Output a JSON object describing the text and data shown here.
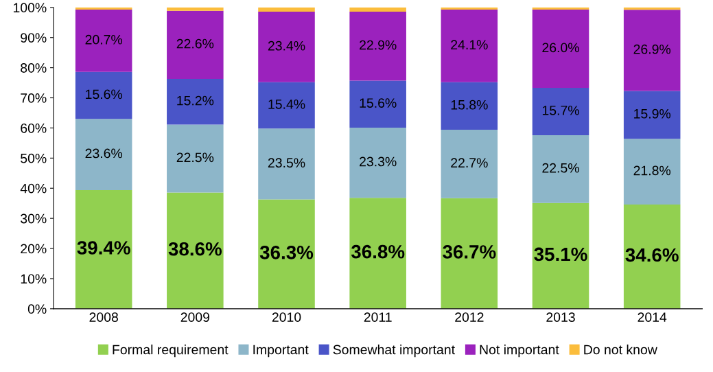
{
  "chart_data": {
    "type": "bar",
    "stacked": true,
    "categories": [
      "2008",
      "2009",
      "2010",
      "2011",
      "2012",
      "2013",
      "2014"
    ],
    "ylim": [
      0,
      100
    ],
    "yticks": [
      {
        "value": 0,
        "label": "0%"
      },
      {
        "value": 10,
        "label": "10%"
      },
      {
        "value": 20,
        "label": "20%"
      },
      {
        "value": 30,
        "label": "30%"
      },
      {
        "value": 40,
        "label": "40%"
      },
      {
        "value": 50,
        "label": "50%"
      },
      {
        "value": 60,
        "label": "60%"
      },
      {
        "value": 70,
        "label": "70%"
      },
      {
        "value": 80,
        "label": "80%"
      },
      {
        "value": 90,
        "label": "90%"
      },
      {
        "value": 100,
        "label": "100%"
      }
    ],
    "grid": false,
    "legend": "bottom",
    "series": [
      {
        "name": "Formal requirement",
        "color": "#92d050",
        "values": [
          39.4,
          38.6,
          36.3,
          36.8,
          36.7,
          35.1,
          34.6
        ],
        "value_labels": [
          "39.4%",
          "38.6%",
          "36.3%",
          "36.8%",
          "36.7%",
          "35.1%",
          "34.6%"
        ]
      },
      {
        "name": "Important",
        "color": "#8db6c9",
        "values": [
          23.6,
          22.5,
          23.5,
          23.3,
          22.7,
          22.5,
          21.8
        ],
        "value_labels": [
          "23.6%",
          "22.5%",
          "23.5%",
          "23.3%",
          "22.7%",
          "22.5%",
          "21.8%"
        ]
      },
      {
        "name": "Somewhat important",
        "color": "#4a55c8",
        "values": [
          15.6,
          15.2,
          15.4,
          15.6,
          15.8,
          15.7,
          15.9
        ],
        "value_labels": [
          "15.6%",
          "15.2%",
          "15.4%",
          "15.6%",
          "15.8%",
          "15.7%",
          "15.9%"
        ]
      },
      {
        "name": "Not important",
        "color": "#9b22bd",
        "values": [
          20.7,
          22.6,
          23.4,
          22.9,
          24.1,
          26.0,
          26.9
        ],
        "value_labels": [
          "20.7%",
          "22.6%",
          "23.4%",
          "22.9%",
          "24.1%",
          "26.0%",
          "26.9%"
        ]
      },
      {
        "name": "Do not know",
        "color": "#fbbd3c",
        "values": [
          0.7,
          1.1,
          1.4,
          1.4,
          0.7,
          0.7,
          0.8
        ]
      }
    ]
  }
}
